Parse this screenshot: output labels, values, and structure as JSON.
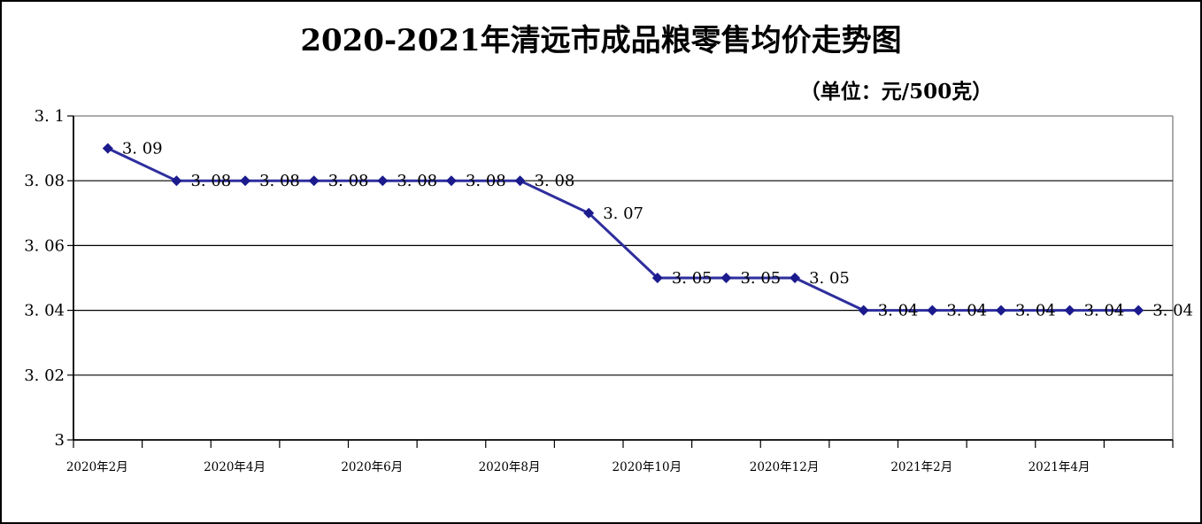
{
  "chart": {
    "title": "2020-2021年清远市成品粮零售均价走势图",
    "unit_note": "（单位：元/500克）"
  },
  "chart_data": {
    "type": "line",
    "title": "2020-2021年清远市成品粮零售均价走势图",
    "unit_note": "（单位：元/500克）",
    "n_points": 16,
    "series": [
      {
        "values": [
          3.09,
          3.08,
          3.08,
          3.08,
          3.08,
          3.08,
          3.08,
          3.07,
          3.05,
          3.05,
          3.05,
          3.04,
          3.04,
          3.04,
          3.04,
          3.04
        ],
        "point_labels": [
          "3. 09",
          "3. 08",
          "3. 08",
          "3. 08",
          "3. 08",
          "3. 08",
          "3. 08",
          "3. 07",
          "3. 05",
          "3. 05",
          "3. 05",
          "3. 04",
          "3. 04",
          "3. 04",
          "3. 04",
          "3. 04"
        ]
      }
    ],
    "x_tick_labels": [
      "2020年2月",
      "2020年4月",
      "2020年6月",
      "2020年8月",
      "2020年10月",
      "2020年12月",
      "2021年2月",
      "2021年4月"
    ],
    "x_label_point_indices": [
      0,
      2,
      4,
      6,
      8,
      10,
      12,
      14
    ],
    "y_ticks": [
      3.1,
      3.08,
      3.06,
      3.04,
      3.02,
      3.0
    ],
    "y_tick_labels": [
      "3. 1",
      "3. 08",
      "3. 06",
      "3. 04",
      "3. 02",
      "3"
    ],
    "ylim": [
      3.0,
      3.1
    ],
    "grid": "horizontal",
    "legend": "none",
    "colors": {
      "line": "#2e2e9e",
      "marker": "#1b1b8e",
      "gridline": "#000000",
      "axis": "#000000",
      "plot_border": "#909090",
      "text": "#000000",
      "background": "#ffffff"
    }
  }
}
